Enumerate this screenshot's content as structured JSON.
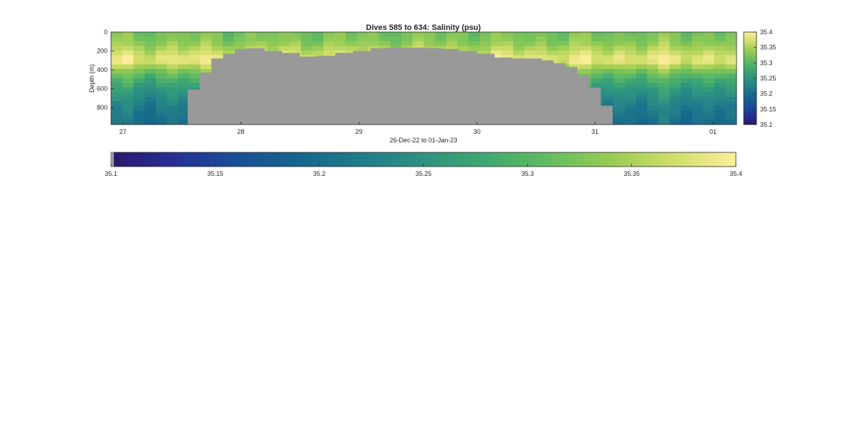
{
  "chart_data": {
    "type": "heatmap",
    "title": "Dives 585 to 634: Salinity (psu)",
    "xlabel": "26-Dec-22 to 01-Jan-23",
    "ylabel": "Depth (m)",
    "x_tick_labels": [
      "27",
      "28",
      "29",
      "30",
      "31",
      "01"
    ],
    "x_ticks_days": [
      27,
      28,
      29,
      30,
      31,
      32
    ],
    "xlim_days": [
      26.9,
      32.2
    ],
    "y_ticks": [
      0,
      200,
      400,
      600,
      800
    ],
    "ylim": [
      0,
      980
    ],
    "y_reversed": true,
    "color_scale": {
      "colormap": "haline",
      "range": [
        35.1,
        35.4
      ],
      "ticks": [
        35.1,
        35.15,
        35.2,
        35.25,
        35.3,
        35.35,
        35.4
      ],
      "tick_labels": [
        "35.1",
        "35.15",
        "35.2",
        "35.25",
        "35.3",
        "35.35",
        "35.4"
      ]
    },
    "no_data_color": "#999999",
    "seafloor_profile": {
      "x_days": [
        27.55,
        27.65,
        27.75,
        27.85,
        27.95,
        28.05,
        28.2,
        28.35,
        28.5,
        28.65,
        28.8,
        28.95,
        29.1,
        29.25,
        29.4,
        29.55,
        29.7,
        29.85,
        30.0,
        30.15,
        30.3,
        30.45,
        30.55,
        30.65,
        30.75,
        30.85,
        30.95,
        31.05,
        31.15,
        31.25
      ],
      "depth": [
        610,
        430,
        280,
        230,
        180,
        170,
        200,
        220,
        260,
        250,
        220,
        200,
        170,
        165,
        165,
        170,
        180,
        200,
        230,
        270,
        280,
        280,
        300,
        330,
        370,
        460,
        590,
        780,
        980,
        980
      ]
    },
    "salinity_profile": {
      "depth": [
        0,
        100,
        200,
        300,
        400,
        500,
        600,
        700,
        800,
        900,
        980
      ],
      "salinity": [
        35.32,
        35.33,
        35.36,
        35.39,
        35.33,
        35.29,
        35.26,
        35.24,
        35.22,
        35.21,
        35.2
      ]
    }
  }
}
